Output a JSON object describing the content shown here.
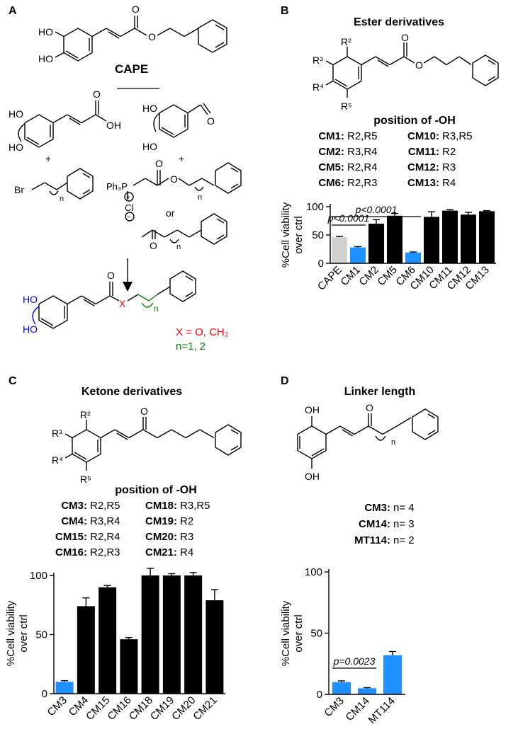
{
  "panels": {
    "A": {
      "letter": "A",
      "top_compound": "CAPE",
      "labels": {
        "ho1": "HO",
        "ho2": "HO",
        "ho3": "HO",
        "ho4": "HO",
        "ho5": "HO",
        "oh": "OH",
        "o1": "O",
        "o2": "O",
        "o3": "O",
        "o4": "O",
        "o5": "O",
        "o6": "O",
        "plus1": "+",
        "plus2": "+",
        "br": "Br",
        "n1": "n",
        "n2": "n",
        "n3": "n",
        "ph3p": "Ph₃P",
        "cl": "Cl",
        "plus_c": "+",
        "minus_c": "−",
        "or": "or",
        "x": "X",
        "nsub": "n"
      },
      "legend_x": "X = O, CH₂",
      "legend_n": "n=1, 2",
      "colors": {
        "hydroxyl": "#0000ff",
        "linker_atom": "#ff0000",
        "chain": "#008000"
      }
    },
    "B": {
      "letter": "B",
      "title": "Ester derivatives",
      "r_labels": {
        "r2": "R²",
        "r3": "R³",
        "r4": "R⁴",
        "r5": "R⁵",
        "o_carbonyl": "O",
        "o_ester": "O"
      },
      "position_heading": "position of -OH",
      "entries": [
        {
          "name": "CM1:",
          "pos": "R2,R5"
        },
        {
          "name": "CM10:",
          "pos": "R3,R5"
        },
        {
          "name": "CM2:",
          "pos": "R3,R4"
        },
        {
          "name": "CM11:",
          "pos": "R2"
        },
        {
          "name": "CM5:",
          "pos": "R2,R4"
        },
        {
          "name": "CM12:",
          "pos": "R3"
        },
        {
          "name": "CM6:",
          "pos": "R2,R3"
        },
        {
          "name": "CM13:",
          "pos": "R4"
        }
      ]
    },
    "C": {
      "letter": "C",
      "title": "Ketone derivatives",
      "r_labels": {
        "r2": "R²",
        "r3": "R³",
        "r4": "R⁴",
        "r5": "R⁵",
        "o_carbonyl": "O"
      },
      "position_heading": "position of -OH",
      "entries": [
        {
          "name": "CM3:",
          "pos": "R2,R5"
        },
        {
          "name": "CM18:",
          "pos": "R3,R5"
        },
        {
          "name": "CM4:",
          "pos": "R3,R4"
        },
        {
          "name": "CM19:",
          "pos": "R2"
        },
        {
          "name": "CM15:",
          "pos": "R2,R4"
        },
        {
          "name": "CM20:",
          "pos": "R3"
        },
        {
          "name": "CM16:",
          "pos": "R2,R3"
        },
        {
          "name": "CM21:",
          "pos": "R4"
        }
      ]
    },
    "D": {
      "letter": "D",
      "title": "Linker length",
      "struct_labels": {
        "oh_top": "OH",
        "oh_bottom": "OH",
        "o_carbonyl": "O",
        "n": "n"
      },
      "entries": [
        {
          "name": "CM3:",
          "val": "n= 4"
        },
        {
          "name": "CM14:",
          "val": "n= 3"
        },
        {
          "name": "MT114:",
          "val": "n= 2"
        }
      ]
    }
  },
  "chart_data": [
    {
      "type": "bar",
      "panel": "B",
      "ylabel": "%Cell viability over ctrl",
      "ylim": [
        0,
        100
      ],
      "yticks": [
        0,
        50,
        100
      ],
      "categories": [
        "CAPE",
        "CM1",
        "CM2",
        "CM5",
        "CM6",
        "CM10",
        "CM11",
        "CM12",
        "CM13"
      ],
      "values": [
        46,
        28,
        70,
        84,
        19,
        82,
        93,
        86,
        92
      ],
      "errors": [
        1.5,
        1.5,
        7,
        4,
        1,
        9,
        2,
        4,
        1
      ],
      "colors": [
        "#d3d3d3",
        "#1e90ff",
        "#000000",
        "#000000",
        "#1e90ff",
        "#000000",
        "#000000",
        "#000000",
        "#000000"
      ],
      "annotations": [
        {
          "text": "p<0.0001",
          "from": 0,
          "to": 1
        },
        {
          "text": "p<0.0001",
          "from": 0,
          "to": 4
        }
      ]
    },
    {
      "type": "bar",
      "panel": "C",
      "ylabel": "%Cell viability over ctrl",
      "ylim": [
        0,
        100
      ],
      "yticks": [
        0,
        50,
        100
      ],
      "categories": [
        "CM3",
        "CM4",
        "CM15",
        "CM16",
        "CM18",
        "CM19",
        "CM20",
        "CM21"
      ],
      "values": [
        10,
        74,
        90,
        46,
        100,
        100,
        100,
        79
      ],
      "errors": [
        1,
        7,
        1.5,
        1.5,
        6,
        1.5,
        2.5,
        9
      ],
      "colors": [
        "#1e90ff",
        "#000000",
        "#000000",
        "#000000",
        "#000000",
        "#000000",
        "#000000",
        "#000000"
      ],
      "annotations": []
    },
    {
      "type": "bar",
      "panel": "D",
      "ylabel": "%Cell viability over ctrl",
      "ylim": [
        0,
        100
      ],
      "yticks": [
        0,
        50,
        100
      ],
      "categories": [
        "CM3",
        "CM14",
        "MT114"
      ],
      "values": [
        10,
        5,
        32
      ],
      "errors": [
        1,
        0.5,
        3
      ],
      "colors": [
        "#1e90ff",
        "#1e90ff",
        "#1e90ff"
      ],
      "annotations": [
        {
          "text": "p=0.0023",
          "from": 0,
          "to": 1
        }
      ]
    }
  ]
}
